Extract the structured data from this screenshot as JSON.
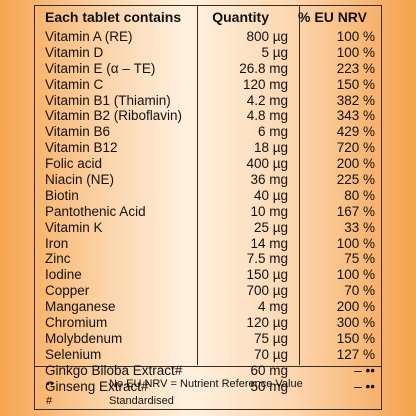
{
  "table": {
    "headers": [
      "Each tablet contains",
      "Quantity",
      "% EU NRV"
    ],
    "rows": [
      {
        "name": "Vitamin A (RE)",
        "qty": "800 µg",
        "nrv": "100 %"
      },
      {
        "name": "Vitamin D",
        "qty": "5 µg",
        "nrv": "100 %"
      },
      {
        "name": "Vitamin E (α – TE)",
        "qty": "26.8 mg",
        "nrv": "223 %"
      },
      {
        "name": "Vitamin C",
        "qty": "120 mg",
        "nrv": "150 %"
      },
      {
        "name": "Vitamin B1 (Thiamin)",
        "qty": "4.2 mg",
        "nrv": "382 %"
      },
      {
        "name": "Vitamin B2 (Riboflavin)",
        "qty": "4.8 mg",
        "nrv": "343 %"
      },
      {
        "name": "Vitamin B6",
        "qty": "6 mg",
        "nrv": "429 %"
      },
      {
        "name": "Vitamin B12",
        "qty": "18 µg",
        "nrv": "720 %"
      },
      {
        "name": "Folic acid",
        "qty": "400 µg",
        "nrv": "200 %"
      },
      {
        "name": "Niacin (NE)",
        "qty": "36 mg",
        "nrv": "225 %"
      },
      {
        "name": "Biotin",
        "qty": "40 µg",
        "nrv": "80 %"
      },
      {
        "name": "Pantothenic Acid",
        "qty": "10 mg",
        "nrv": "167 %"
      },
      {
        "name": "Vitamin K",
        "qty": "25 µg",
        "nrv": "33 %"
      },
      {
        "name": "Iron",
        "qty": "14 mg",
        "nrv": "100 %"
      },
      {
        "name": "Zinc",
        "qty": "7.5 mg",
        "nrv": "75 %"
      },
      {
        "name": "Iodine",
        "qty": "150 µg",
        "nrv": "100 %"
      },
      {
        "name": "Copper",
        "qty": "700 µg",
        "nrv": "70 %"
      },
      {
        "name": "Manganese",
        "qty": "4 mg",
        "nrv": "200 %"
      },
      {
        "name": "Chromium",
        "qty": "120 µg",
        "nrv": "300 %"
      },
      {
        "name": "Molybdenum",
        "qty": "75 µg",
        "nrv": "150 %"
      },
      {
        "name": "Selenium",
        "qty": "70 µg",
        "nrv": "127 %"
      },
      {
        "name": "Ginkgo Biloba Extract#",
        "qty": "60 mg",
        "nrv": "– ••"
      },
      {
        "name": "Ginseng Extract#",
        "qty": "50 mg",
        "nrv": "– ••"
      }
    ]
  },
  "footnotes": [
    {
      "symbol": "••",
      "text": "No EU NRV = Nutrient Reference Value"
    },
    {
      "symbol": "#",
      "text": "Standardised"
    }
  ]
}
